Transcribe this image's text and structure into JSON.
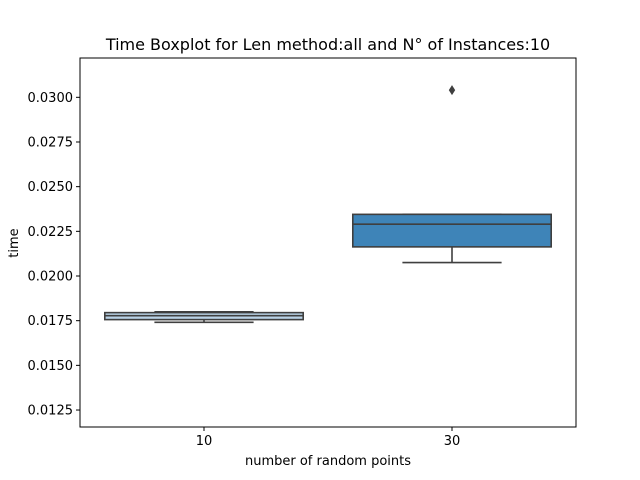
{
  "chart_data": {
    "type": "boxplot",
    "title": "Time Boxplot for Len method:all and N° of Instances:10",
    "xlabel": "number of random points",
    "ylabel": "time",
    "ylim": [
      0.01155,
      0.0322
    ],
    "yticks": [
      "0.0125",
      "0.0150",
      "0.0175",
      "0.0200",
      "0.0225",
      "0.0250",
      "0.0275",
      "0.0300"
    ],
    "grid": false,
    "categories": [
      "10",
      "30"
    ],
    "boxes": [
      {
        "category": "10",
        "whisker_low": 0.01741,
        "q1": 0.01756,
        "median": 0.01778,
        "q3": 0.01795,
        "whisker_high": 0.018,
        "outliers": [],
        "color": "#b9d2e6"
      },
      {
        "category": "30",
        "whisker_low": 0.02075,
        "q1": 0.02163,
        "median": 0.0229,
        "q3": 0.02345,
        "whisker_high": 0.02345,
        "outliers": [
          0.0304
        ],
        "color": "#3e84b8"
      }
    ]
  }
}
